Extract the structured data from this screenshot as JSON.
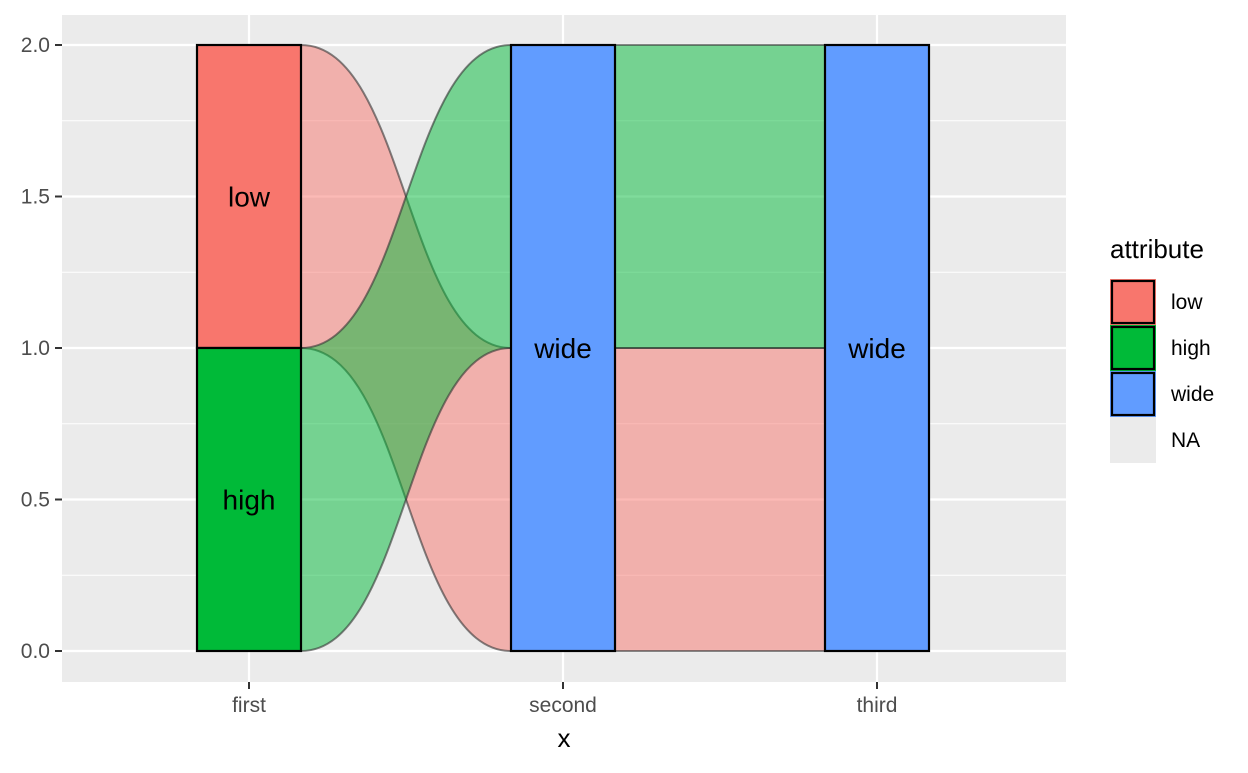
{
  "chart_data": {
    "type": "alluvial",
    "xlabel": "x",
    "ylabel": "",
    "ylim": [
      0,
      2
    ],
    "y_ticks": [
      "0.0",
      "0.5",
      "1.0",
      "1.5",
      "2.0"
    ],
    "axes": [
      "first",
      "second",
      "third"
    ],
    "strata": [
      {
        "axis": "first",
        "label": "low",
        "fill": "low",
        "ymin": 1,
        "ymax": 2
      },
      {
        "axis": "first",
        "label": "high",
        "fill": "high",
        "ymin": 0,
        "ymax": 1
      },
      {
        "axis": "second",
        "label": "wide",
        "fill": "wide",
        "ymin": 0,
        "ymax": 2
      },
      {
        "axis": "third",
        "label": "wide",
        "fill": "wide",
        "ymin": 0,
        "ymax": 2
      }
    ],
    "flows": [
      {
        "from": "first",
        "to": "second",
        "fill": "low",
        "from_range": [
          1,
          2
        ],
        "to_range": [
          0,
          1
        ]
      },
      {
        "from": "first",
        "to": "second",
        "fill": "high",
        "from_range": [
          0,
          1
        ],
        "to_range": [
          1,
          2
        ]
      },
      {
        "from": "second",
        "to": "third",
        "fill": "low",
        "from_range": [
          0,
          1
        ],
        "to_range": [
          0,
          1
        ]
      },
      {
        "from": "second",
        "to": "third",
        "fill": "high",
        "from_range": [
          1,
          2
        ],
        "to_range": [
          1,
          2
        ]
      }
    ],
    "legend": {
      "title": "attribute",
      "position": "right",
      "entries": [
        {
          "label": "low",
          "key": "low"
        },
        {
          "label": "high",
          "key": "high"
        },
        {
          "label": "wide",
          "key": "wide"
        },
        {
          "label": "NA",
          "key": "na"
        }
      ]
    },
    "colors": {
      "low": "#F8766D",
      "high": "#00BA38",
      "wide": "#619CFF",
      "na": "#EBEBEB",
      "panel": "#EBEBEB",
      "grid": "#FFFFFF"
    },
    "grid": true
  }
}
